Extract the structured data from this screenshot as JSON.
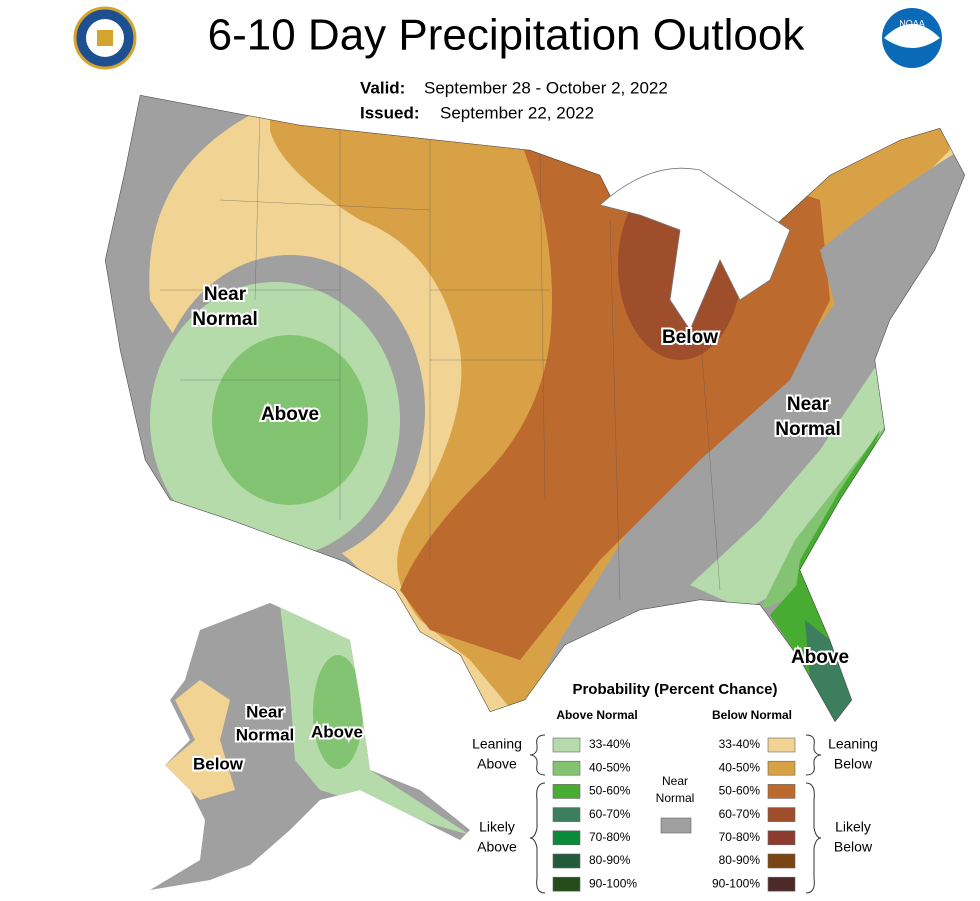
{
  "header": {
    "title": "6-10 Day Precipitation Outlook",
    "valid_label": "Valid:",
    "valid": "September 28 - October 2, 2022",
    "issued_label": "Issued:",
    "issued": "September 22, 2022"
  },
  "logos": {
    "noaa": "NOAA"
  },
  "map_labels": [
    {
      "lines": [
        "Near",
        "Normal"
      ]
    },
    {
      "lines": [
        "Above"
      ]
    },
    {
      "lines": [
        "Below"
      ]
    },
    {
      "lines": [
        "Near",
        "Normal"
      ]
    },
    {
      "lines": [
        "Above"
      ]
    },
    {
      "lines": [
        "Near",
        "Normal"
      ]
    },
    {
      "lines": [
        "Above"
      ]
    },
    {
      "lines": [
        "Below"
      ]
    }
  ],
  "legend": {
    "title": "Probability (Percent Chance)",
    "above_heading": "Above Normal",
    "below_heading": "Below Normal",
    "above": [
      {
        "range": "33-40%",
        "color": "#b5dbab"
      },
      {
        "range": "40-50%",
        "color": "#82c471"
      },
      {
        "range": "50-60%",
        "color": "#48ac32"
      },
      {
        "range": "60-70%",
        "color": "#3c7e5e"
      },
      {
        "range": "70-80%",
        "color": "#0b8a3b"
      },
      {
        "range": "80-90%",
        "color": "#225a3c"
      },
      {
        "range": "90-100%",
        "color": "#254d1a"
      }
    ],
    "below": [
      {
        "range": "33-40%",
        "color": "#f1d393"
      },
      {
        "range": "40-50%",
        "color": "#d9a146"
      },
      {
        "range": "50-60%",
        "color": "#bd6a2f"
      },
      {
        "range": "60-70%",
        "color": "#9f4e2c"
      },
      {
        "range": "70-80%",
        "color": "#8e3b2f"
      },
      {
        "range": "80-90%",
        "color": "#7a4512"
      },
      {
        "range": "90-100%",
        "color": "#4d2a2a"
      }
    ],
    "near_normal": {
      "lines": [
        "Near",
        "Normal"
      ],
      "color": "#a0a0a0"
    },
    "leaning_above": [
      "Leaning",
      "Above"
    ],
    "likely_above": [
      "Likely",
      "Above"
    ],
    "leaning_below": [
      "Leaning",
      "Below"
    ],
    "likely_below": [
      "Likely",
      "Below"
    ]
  }
}
